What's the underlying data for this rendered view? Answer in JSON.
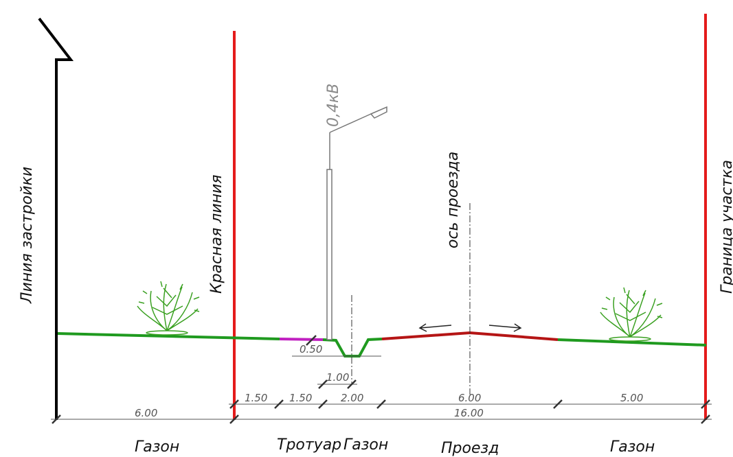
{
  "labels": {
    "building_line": "Линия застройки",
    "red_line": "Красная линия",
    "road_axis": "ось проезда",
    "plot_border": "Граница участка",
    "voltage": "0,4кВ"
  },
  "dimensions": {
    "ditch_depth": "0.50",
    "ditch_offset": "1.00",
    "seg_1": "1.50",
    "seg_2": "1.50",
    "seg_3": "2.00",
    "seg_4": "6.00",
    "seg_5": "5.00",
    "left_total": "6.00",
    "right_total": "16.00"
  },
  "zones": {
    "lawn_left": "Газон",
    "sidewalk": "Тротуар",
    "lawn_mid": "Газон",
    "driveway": "Проезд",
    "lawn_right": "Газон"
  },
  "colors": {
    "building_line": "#000000",
    "red_line": "#e41b1b",
    "lawn": "#1f9a1f",
    "sidewalk": "#c020c0",
    "driveway": "#b51515",
    "dimension": "#555555",
    "pole": "#777777",
    "shrub": "#3aa021"
  }
}
